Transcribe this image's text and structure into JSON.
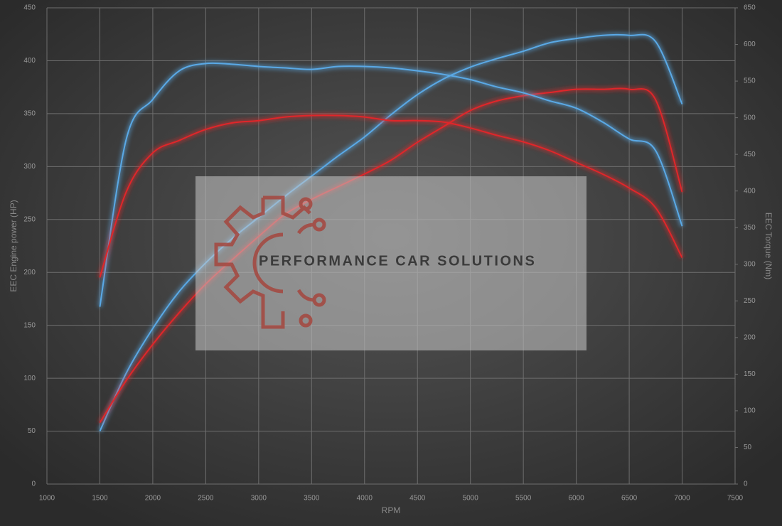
{
  "chart_data": {
    "type": "line",
    "x_label": "RPM",
    "y_label": "EEC Engine power (HP)",
    "y2_label": "EEC Torque (Nm)",
    "watermark": "PERFORMANCE CAR SOLUTIONS",
    "x": [
      1500,
      1750,
      2000,
      2250,
      2500,
      2750,
      3000,
      3250,
      3500,
      3750,
      4000,
      4250,
      4500,
      4750,
      5000,
      5250,
      5500,
      5750,
      6000,
      6250,
      6500,
      6750,
      7000
    ],
    "series": [
      {
        "color": "#5aa9e6",
        "axis": "y",
        "values": [
          50,
          105,
          147,
          182,
          209,
          232,
          252,
          272,
          291,
          310,
          328,
          349,
          368,
          383,
          394,
          402,
          409,
          417,
          421,
          424,
          424,
          418,
          359
        ]
      },
      {
        "color": "#e0262a",
        "axis": "y",
        "values": [
          58,
          98,
          132,
          162,
          189,
          212,
          234,
          255,
          269,
          281,
          293,
          306,
          323,
          338,
          353,
          362,
          367,
          370,
          373,
          373,
          373,
          363,
          276
        ]
      },
      {
        "color": "#5aa9e6",
        "axis": "y2",
        "values": [
          242,
          471,
          525,
          564,
          574,
          573,
          570,
          568,
          566,
          570,
          570,
          568,
          564,
          559,
          552,
          542,
          534,
          523,
          513,
          494,
          471,
          455,
          352
        ]
      },
      {
        "color": "#e0262a",
        "axis": "y2",
        "values": [
          282,
          399,
          452,
          469,
          484,
          493,
          496,
          501,
          503,
          503,
          501,
          496,
          496,
          494,
          486,
          476,
          467,
          455,
          439,
          423,
          404,
          377,
          309
        ]
      }
    ],
    "xlim": [
      1000,
      7500
    ],
    "xticks": [
      1000,
      1500,
      2000,
      2500,
      3000,
      3500,
      4000,
      4500,
      5000,
      5500,
      6000,
      6500,
      7000,
      7500
    ],
    "ylim": [
      0,
      450
    ],
    "yticks": [
      0,
      50,
      100,
      150,
      200,
      250,
      300,
      350,
      400,
      450
    ],
    "y2lim": [
      0,
      650
    ],
    "y2ticks": [
      0,
      50,
      100,
      150,
      200,
      250,
      300,
      350,
      400,
      450,
      500,
      550,
      600,
      650
    ],
    "grid": true
  }
}
